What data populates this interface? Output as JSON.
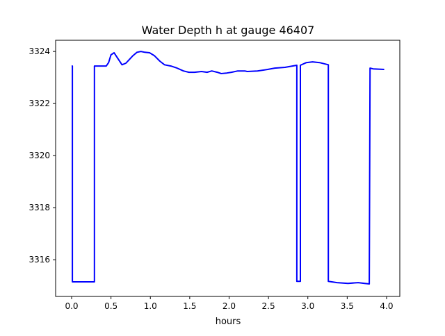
{
  "chart_data": {
    "type": "line",
    "title": "Water Depth h at gauge 46407",
    "xlabel": "hours",
    "ylabel": "",
    "xlim": [
      -0.203,
      4.168
    ],
    "ylim": [
      3314.59,
      3324.43
    ],
    "grid": false,
    "xticks": [
      0.0,
      0.5,
      1.0,
      1.5,
      2.0,
      2.5,
      3.0,
      3.5,
      4.0
    ],
    "xtick_labels": [
      "0.0",
      "0.5",
      "1.0",
      "1.5",
      "2.0",
      "2.5",
      "3.0",
      "3.5",
      "4.0"
    ],
    "yticks": [
      3316,
      3318,
      3320,
      3322,
      3324
    ],
    "ytick_labels": [
      "3316",
      "3318",
      "3320",
      "3322",
      "3324"
    ],
    "series": [
      {
        "name": "h",
        "color": "#0000ff",
        "x": [
          0.0,
          0.01,
          0.01,
          0.29,
          0.29,
          0.44,
          0.47,
          0.5,
          0.54,
          0.58,
          0.64,
          0.69,
          0.73,
          0.78,
          0.83,
          0.88,
          0.93,
          0.99,
          1.05,
          1.12,
          1.18,
          1.26,
          1.34,
          1.42,
          1.49,
          1.56,
          1.65,
          1.72,
          1.78,
          1.85,
          1.9,
          1.97,
          2.03,
          2.11,
          2.2,
          2.23,
          2.36,
          2.49,
          2.58,
          2.71,
          2.86,
          2.86,
          2.905,
          2.905,
          2.98,
          3.06,
          3.15,
          3.26,
          3.26,
          3.37,
          3.51,
          3.64,
          3.72,
          3.78,
          3.79,
          3.83,
          3.97
        ],
        "y": [
          3323.44,
          3323.44,
          3315.15,
          3315.15,
          3323.44,
          3323.44,
          3323.57,
          3323.87,
          3323.95,
          3323.76,
          3323.49,
          3323.55,
          3323.68,
          3323.84,
          3323.97,
          3324.0,
          3323.97,
          3323.95,
          3323.84,
          3323.63,
          3323.49,
          3323.44,
          3323.36,
          3323.25,
          3323.2,
          3323.2,
          3323.23,
          3323.2,
          3323.25,
          3323.2,
          3323.15,
          3323.17,
          3323.2,
          3323.25,
          3323.25,
          3323.23,
          3323.25,
          3323.31,
          3323.36,
          3323.39,
          3323.47,
          3315.17,
          3315.17,
          3323.47,
          3323.57,
          3323.6,
          3323.57,
          3323.49,
          3315.17,
          3315.12,
          3315.09,
          3315.12,
          3315.09,
          3315.07,
          3323.36,
          3323.33,
          3323.31
        ]
      }
    ]
  }
}
